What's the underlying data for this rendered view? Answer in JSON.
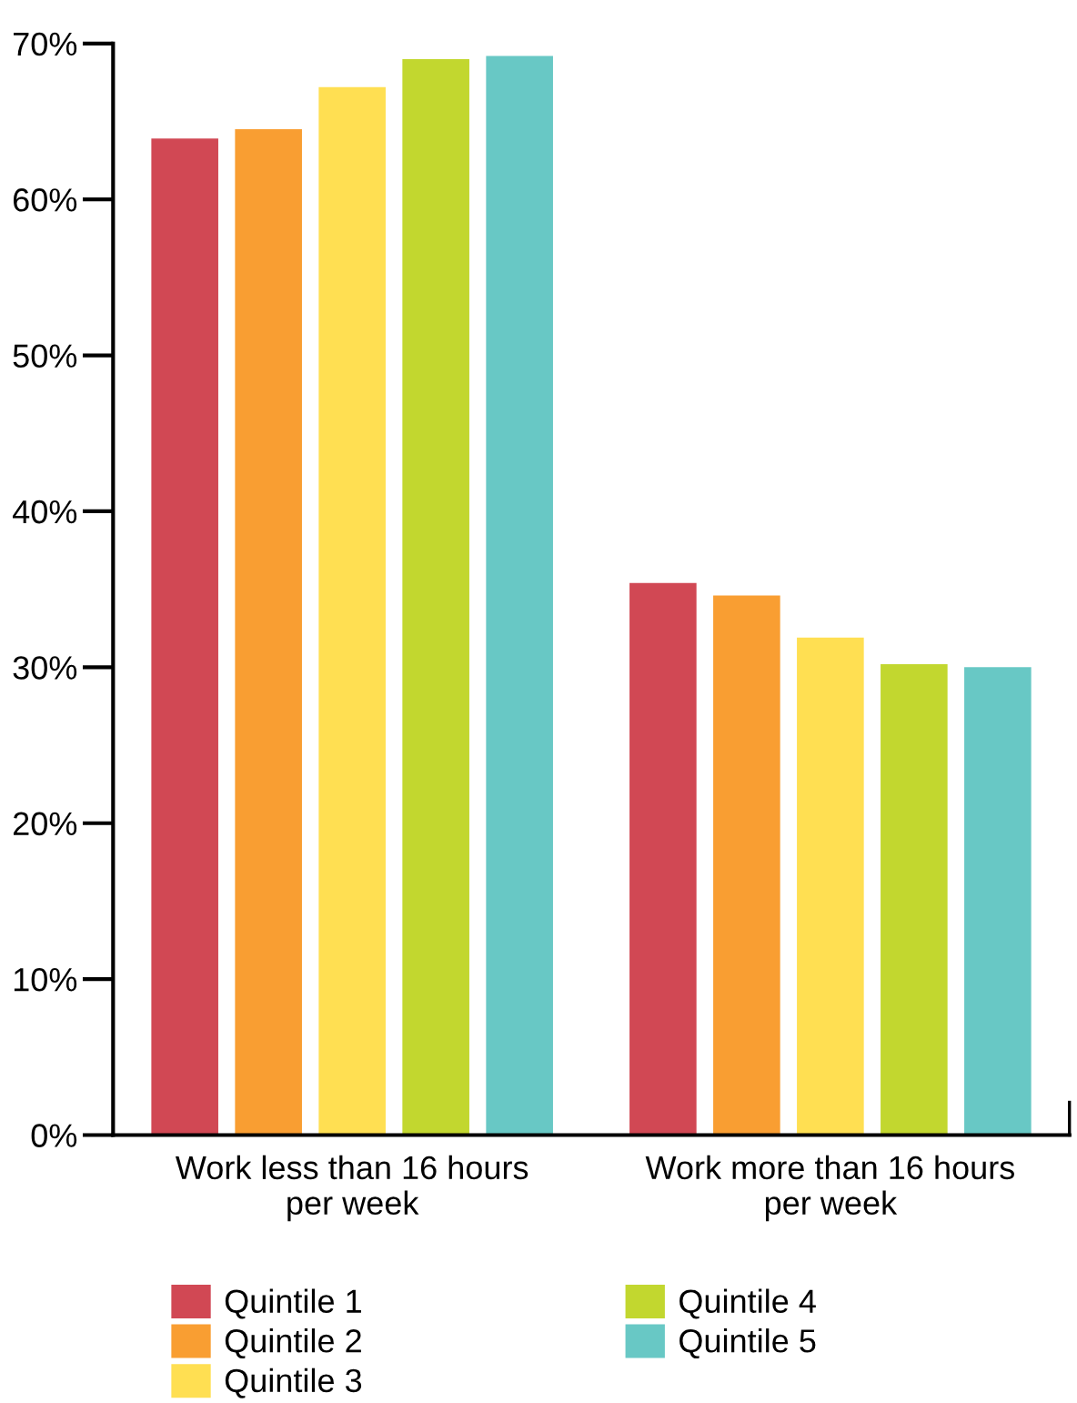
{
  "chart_data": {
    "type": "bar",
    "categories": [
      "Work less than 16 hours\nper week",
      "Work more than 16 hours\nper week"
    ],
    "series": [
      {
        "name": "Quintile 1",
        "color": "#d14854",
        "values": [
          63.9,
          35.4
        ]
      },
      {
        "name": "Quintile 2",
        "color": "#f99e32",
        "values": [
          64.5,
          34.6
        ]
      },
      {
        "name": "Quintile 3",
        "color": "#ffdf52",
        "values": [
          67.2,
          31.9
        ]
      },
      {
        "name": "Quintile 4",
        "color": "#c2d72f",
        "values": [
          69.0,
          30.2
        ]
      },
      {
        "name": "Quintile 5",
        "color": "#68c8c5",
        "values": [
          69.2,
          30.0
        ]
      }
    ],
    "ylim": [
      0,
      70
    ],
    "yticks": [
      {
        "value": 0,
        "label": "0%"
      },
      {
        "value": 10,
        "label": "10%"
      },
      {
        "value": 20,
        "label": "20%"
      },
      {
        "value": 30,
        "label": "30%"
      },
      {
        "value": 40,
        "label": "40%"
      },
      {
        "value": 50,
        "label": "50%"
      },
      {
        "value": 60,
        "label": "60%"
      },
      {
        "value": 70,
        "label": "70%"
      }
    ],
    "grid": false,
    "legend": "bottom"
  }
}
